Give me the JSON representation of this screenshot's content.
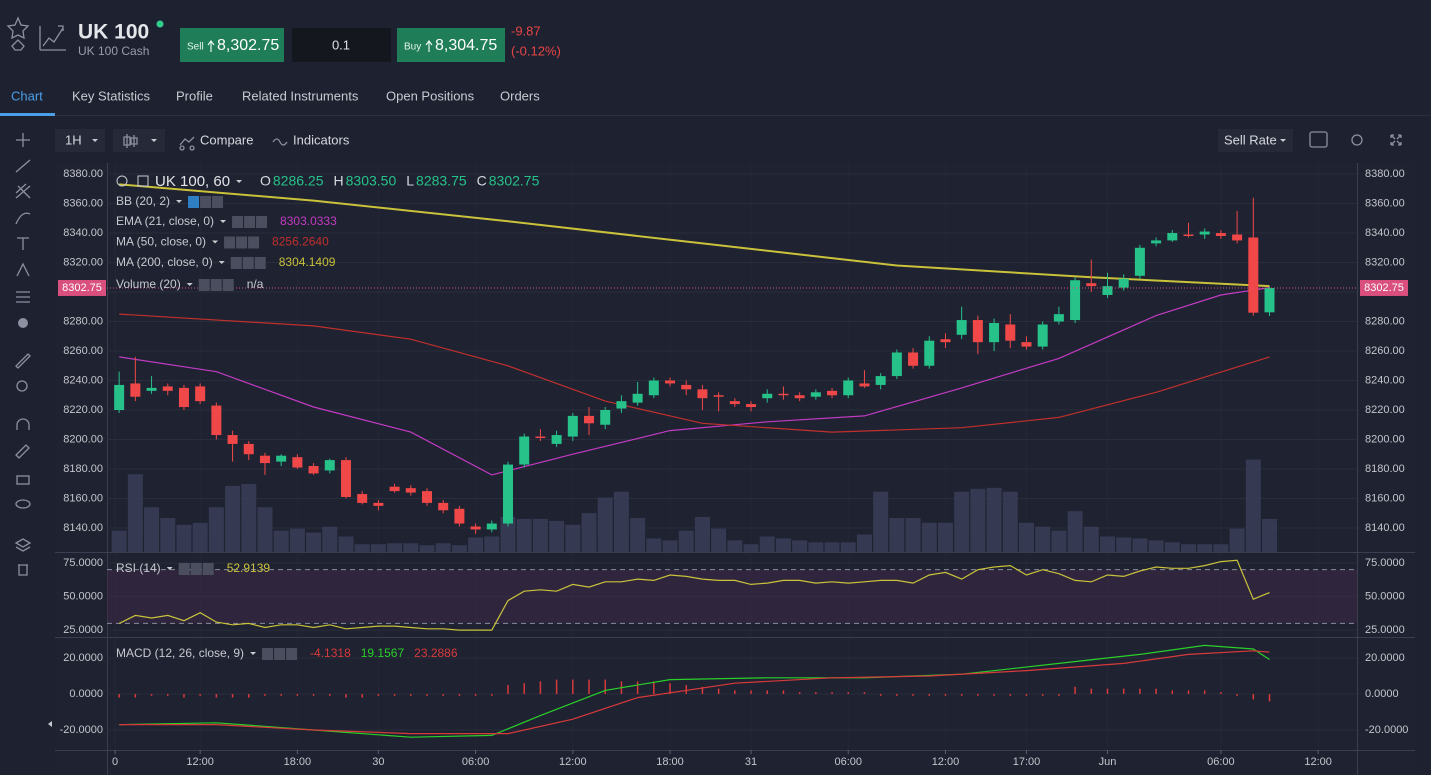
{
  "header": {
    "symbol": "UK 100",
    "name": "UK 100 Cash",
    "sell_label": "Sell",
    "sell_price": "8,302.75",
    "quantity": "0.1",
    "buy_label": "Buy",
    "buy_price": "8,304.75",
    "change": "-9.87",
    "change_pct": "(-0.12%)"
  },
  "tabs": [
    "Chart",
    "Key Statistics",
    "Profile",
    "Related Instruments",
    "Open Positions",
    "Orders"
  ],
  "toolbar": {
    "interval": "1H",
    "compare": "Compare",
    "indicators": "Indicators",
    "rate": "Sell Rate"
  },
  "chart_data": [
    {
      "type": "candlestick",
      "title": "UK 100, 60",
      "ohlc": [
        {
          "label": "O",
          "value": "8286.25"
        },
        {
          "label": "H",
          "value": "8303.50"
        },
        {
          "label": "L",
          "value": "8283.75"
        },
        {
          "label": "C",
          "value": "8302.75"
        }
      ],
      "up_color": "#26c28a",
      "down_color": "#f04848",
      "last_price": 8302.75,
      "last_price_color": "#d94f7d",
      "xlim": [
        -0.75,
        76.4
      ],
      "xticks": [
        {
          "value": -0.25,
          "label": "0"
        },
        {
          "value": 5,
          "label": "12:00"
        },
        {
          "value": 11,
          "label": "18:00"
        },
        {
          "value": 16,
          "label": "30"
        },
        {
          "value": 22,
          "label": "06:00"
        },
        {
          "value": 28,
          "label": "12:00"
        },
        {
          "value": 34,
          "label": "18:00"
        },
        {
          "value": 39,
          "label": "31"
        },
        {
          "value": 45,
          "label": "06:00"
        },
        {
          "value": 51,
          "label": "12:00"
        },
        {
          "value": 56,
          "label": "17:00"
        },
        {
          "value": 61,
          "label": "Jun"
        },
        {
          "value": 68,
          "label": "06:00"
        },
        {
          "value": 74,
          "label": "12:00"
        }
      ],
      "ylim": [
        8123.7,
        8387.5
      ],
      "yticks": [
        {
          "value": 8140,
          "label": "8140.00"
        },
        {
          "value": 8160,
          "label": "8160.00"
        },
        {
          "value": 8180,
          "label": "8180.00"
        },
        {
          "value": 8200,
          "label": "8200.00"
        },
        {
          "value": 8220,
          "label": "8220.00"
        },
        {
          "value": 8240,
          "label": "8240.00"
        },
        {
          "value": 8260,
          "label": "8260.00"
        },
        {
          "value": 8280,
          "label": "8280.00"
        },
        {
          "value": 8300,
          "label": "8300.00"
        },
        {
          "value": 8320,
          "label": "8320.00"
        },
        {
          "value": 8340,
          "label": "8340.00"
        },
        {
          "value": 8360,
          "label": "8360.00"
        },
        {
          "value": 8380,
          "label": "8380.00"
        }
      ],
      "x": [
        0,
        1,
        2,
        3,
        4,
        5,
        6,
        7,
        8,
        9,
        10,
        11,
        12,
        13,
        14,
        15,
        16,
        17,
        18,
        19,
        20,
        21,
        22,
        23,
        24,
        25,
        26,
        27,
        28,
        29,
        30,
        31,
        32,
        33,
        34,
        35,
        36,
        37,
        38,
        39,
        40,
        41,
        42,
        43,
        44,
        45,
        46,
        47,
        48,
        49,
        50,
        51,
        52,
        53,
        54,
        55,
        56,
        57,
        58,
        59,
        60,
        61,
        62,
        63,
        64,
        65,
        66,
        67,
        68,
        69,
        70,
        71
      ],
      "open": [
        8220,
        8238,
        8233,
        8236,
        8235,
        8236,
        8223,
        8203,
        8197,
        8189,
        8185,
        8188,
        8182,
        8179,
        8186,
        8163,
        8157,
        8168,
        8167,
        8165,
        8157,
        8153,
        8141,
        8139,
        8143,
        8183,
        8202,
        8197,
        8202,
        8216,
        8210,
        8221,
        8225,
        8230,
        8240,
        8237,
        8234,
        8230,
        8226,
        8224,
        8228,
        8231,
        8230,
        8229,
        8233,
        8230,
        8238,
        8237,
        8243,
        8259,
        8250,
        8268,
        8271,
        8281,
        8266,
        8278,
        8266,
        8263,
        8280,
        8281,
        8306,
        8298,
        8303,
        8311,
        8333,
        8335,
        8339,
        8339,
        8340,
        8339,
        8337,
        8286.25
      ],
      "high": [
        8246,
        8256,
        8243,
        8238,
        8237,
        8238,
        8225,
        8206,
        8199,
        8191,
        8190,
        8190,
        8184,
        8187,
        8188,
        8165,
        8159,
        8170,
        8169,
        8167,
        8159,
        8155,
        8143,
        8145,
        8185,
        8204,
        8207,
        8206,
        8218,
        8222,
        8222,
        8230,
        8239,
        8242,
        8242,
        8240,
        8237,
        8232,
        8228,
        8226,
        8234,
        8236,
        8232,
        8234,
        8235,
        8242,
        8247,
        8245,
        8261,
        8262,
        8270,
        8272,
        8290,
        8284,
        8282,
        8285,
        8270,
        8280,
        8290,
        8310,
        8322,
        8313,
        8312,
        8332,
        8337,
        8342,
        8347,
        8343,
        8342,
        8355,
        8364,
        8303.5
      ],
      "low": [
        8218,
        8226,
        8231,
        8230,
        8220,
        8224,
        8200,
        8185,
        8186,
        8176,
        8182,
        8180,
        8176,
        8177,
        8160,
        8156,
        8152,
        8164,
        8162,
        8155,
        8150,
        8141,
        8136,
        8137,
        8141,
        8181,
        8199,
        8195,
        8199,
        8203,
        8207,
        8218,
        8223,
        8228,
        8236,
        8230,
        8220,
        8219,
        8222,
        8219,
        8225,
        8227,
        8226,
        8227,
        8228,
        8228,
        8235,
        8234,
        8241,
        8248,
        8248,
        8262,
        8268,
        8258,
        8260,
        8262,
        8261,
        8261,
        8278,
        8279,
        8300,
        8296,
        8301,
        8309,
        8331,
        8334,
        8337,
        8336,
        8336,
        8333,
        8284,
        8283.75
      ],
      "close": [
        8237,
        8229,
        8235,
        8233,
        8222,
        8226,
        8203,
        8197,
        8190,
        8184,
        8189,
        8181,
        8177,
        8186,
        8161,
        8157,
        8155,
        8165,
        8164,
        8157,
        8152,
        8143,
        8139,
        8143,
        8183,
        8202,
        8201,
        8203,
        8216,
        8211,
        8220,
        8226,
        8231,
        8240,
        8238,
        8234,
        8228,
        8229,
        8224,
        8222,
        8231,
        8230,
        8228,
        8232,
        8230,
        8240,
        8236,
        8243,
        8259,
        8250,
        8267,
        8266,
        8281,
        8266,
        8279,
        8267,
        8263,
        8278,
        8285,
        8308,
        8304,
        8304,
        8309,
        8330,
        8335,
        8340,
        8338,
        8341,
        8338,
        8335,
        8286,
        8302.75
      ],
      "bb": {
        "name": "BB (20, 2)"
      },
      "series": [
        {
          "name": "EMA (21, close, 0)",
          "value": "8303.0333",
          "color": "#c23bc2",
          "x": [
            0,
            6,
            12,
            18,
            23,
            28,
            34,
            40,
            46,
            52,
            58,
            64,
            68,
            71
          ],
          "values": [
            8256,
            8246,
            8222,
            8205,
            8176,
            8190,
            8206,
            8212,
            8216,
            8235,
            8255,
            8284,
            8298,
            8303
          ]
        },
        {
          "name": "MA (50, close, 0)",
          "value": "8256.2640",
          "color": "#c0302c",
          "x": [
            0,
            12,
            18,
            24,
            30,
            36,
            44,
            52,
            58,
            64,
            71
          ],
          "values": [
            8285,
            8277,
            8268,
            8250,
            8226,
            8211,
            8205,
            8208,
            8215,
            8232,
            8256
          ]
        },
        {
          "name": "MA (200, close, 0)",
          "value": "8304.1409",
          "color": "#c9c23a",
          "x": [
            0,
            12,
            24,
            36,
            48,
            60,
            71
          ],
          "values": [
            8373,
            8362,
            8348,
            8333,
            8318,
            8310,
            8304
          ]
        }
      ],
      "volume_name": "Volume (20)",
      "volume_value": "n/a",
      "volume_color": "#3a3d58",
      "vlim": [
        0,
        400
      ],
      "volume": [
        22,
        80,
        46,
        35,
        28,
        30,
        46,
        68,
        70,
        46,
        22,
        24,
        20,
        26,
        16,
        8,
        8,
        9,
        9,
        7,
        9,
        7,
        15,
        16,
        36,
        34,
        34,
        32,
        28,
        40,
        56,
        62,
        35,
        14,
        12,
        22,
        36,
        24,
        12,
        8,
        16,
        14,
        12,
        10,
        10,
        10,
        18,
        62,
        35,
        35,
        30,
        30,
        62,
        65,
        66,
        62,
        30,
        26,
        22,
        42,
        26,
        16,
        15,
        14,
        12,
        10,
        8,
        8,
        8,
        24,
        95,
        34
      ]
    },
    {
      "type": "line",
      "title": "RSI (14)",
      "ylim": [
        19.9,
        82.4
      ],
      "yticks": [
        {
          "value": 25,
          "label": "25.0000"
        },
        {
          "value": 50,
          "label": "50.0000"
        },
        {
          "value": 75,
          "label": "75.0000"
        }
      ],
      "band": [
        30,
        70
      ],
      "band_color": "#3a2a48",
      "series": [
        {
          "value": "52.9139",
          "color": "#c9c23a",
          "x": [
            0,
            1,
            2,
            3,
            4,
            5,
            6,
            7,
            8,
            9,
            10,
            11,
            12,
            13,
            14,
            15,
            16,
            17,
            18,
            19,
            20,
            21,
            22,
            23,
            24,
            25,
            26,
            27,
            28,
            29,
            30,
            31,
            32,
            33,
            34,
            35,
            36,
            37,
            38,
            39,
            40,
            41,
            42,
            43,
            44,
            45,
            46,
            47,
            48,
            49,
            50,
            51,
            52,
            53,
            54,
            55,
            56,
            57,
            58,
            59,
            60,
            61,
            62,
            63,
            64,
            65,
            66,
            67,
            68,
            69,
            70,
            71
          ],
          "values": [
            30,
            36,
            34,
            36,
            32,
            38,
            31,
            29,
            30,
            27,
            29,
            29,
            27,
            29,
            26,
            27,
            28,
            28,
            27,
            26,
            26,
            25,
            25,
            25,
            47,
            54,
            55,
            54,
            59,
            57,
            61,
            61,
            63,
            62,
            66,
            65,
            63,
            62,
            62,
            59,
            60,
            62,
            62,
            60,
            61,
            60,
            61,
            62,
            62,
            60,
            66,
            68,
            63,
            70,
            72,
            73,
            66,
            70,
            67,
            62,
            61,
            66,
            65,
            69,
            72,
            71,
            71,
            73,
            76,
            77,
            48,
            52.9139
          ]
        }
      ]
    },
    {
      "type": "line",
      "title": "MACD (12, 26, close, 9)",
      "ylim": [
        -31.1,
        31.1
      ],
      "yticks": [
        {
          "value": -20,
          "label": "-20.0000"
        },
        {
          "value": 0,
          "label": "0.0000"
        },
        {
          "value": 20,
          "label": "20.0000"
        }
      ],
      "histogram": {
        "value": "-4.1318",
        "color": "#d83a3a",
        "values": [
          -2,
          -2,
          -1,
          -1,
          -2,
          -1,
          -2,
          -2,
          -2,
          -1,
          -1,
          -1,
          -1,
          -1,
          -2,
          -2,
          -1,
          -1,
          -1,
          -1,
          -1,
          -1,
          -1,
          -1,
          5,
          6,
          7,
          8,
          8,
          8,
          8,
          7,
          7,
          7,
          6,
          5,
          4,
          3,
          2,
          2,
          2,
          2,
          1,
          1,
          1,
          1,
          1,
          -1,
          -1,
          -1,
          -1,
          -1,
          -1,
          -1,
          -1,
          -1,
          -1,
          -1,
          -1,
          4,
          3,
          3,
          3,
          3,
          3,
          2,
          2,
          2,
          1,
          -1,
          -3,
          -4.1318
        ]
      },
      "series": [
        {
          "value": "19.1567",
          "color": "#2ad02a",
          "x": [
            0,
            6,
            12,
            18,
            23,
            26,
            30,
            34,
            40,
            46,
            52,
            58,
            63,
            67,
            70,
            71
          ],
          "values": [
            -17,
            -16,
            -20,
            -24,
            -23,
            -12,
            2,
            8,
            9,
            9,
            11,
            17,
            22,
            27,
            25,
            19.1567
          ]
        },
        {
          "value": "23.2886",
          "color": "#d83a3a",
          "x": [
            0,
            6,
            12,
            18,
            24,
            28,
            32,
            38,
            44,
            50,
            56,
            62,
            66,
            70,
            71
          ],
          "values": [
            -17,
            -17,
            -20,
            -22,
            -22,
            -14,
            -2,
            6,
            9,
            10,
            13,
            17,
            22,
            24,
            23.2886
          ]
        }
      ]
    }
  ]
}
